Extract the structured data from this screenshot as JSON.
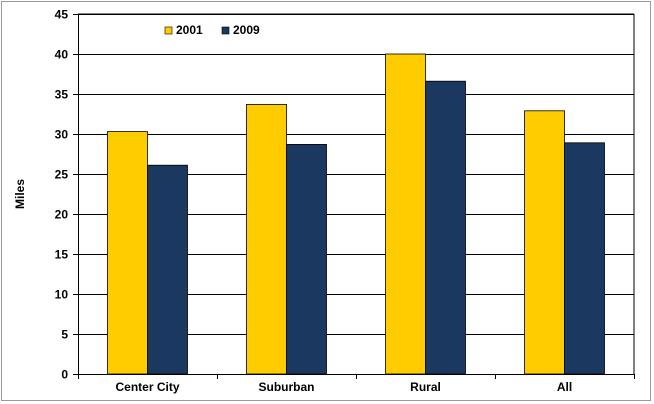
{
  "chart_data": {
    "type": "bar",
    "title": "",
    "xlabel": "",
    "ylabel": "Miles",
    "categories": [
      "Center City",
      "Suburban",
      "Rural",
      "All"
    ],
    "series": [
      {
        "name": "2001",
        "color": "#FFCC00",
        "values": [
          30.3,
          33.7,
          40.0,
          32.9
        ]
      },
      {
        "name": "2009",
        "color": "#1B3861",
        "values": [
          26.1,
          28.7,
          36.6,
          28.9
        ]
      }
    ],
    "ylim": [
      0,
      45
    ],
    "yticks": [
      "0",
      "5",
      "10",
      "15",
      "20",
      "25",
      "30",
      "35",
      "40",
      "45"
    ],
    "grid": true,
    "legend_position": "top-left"
  }
}
